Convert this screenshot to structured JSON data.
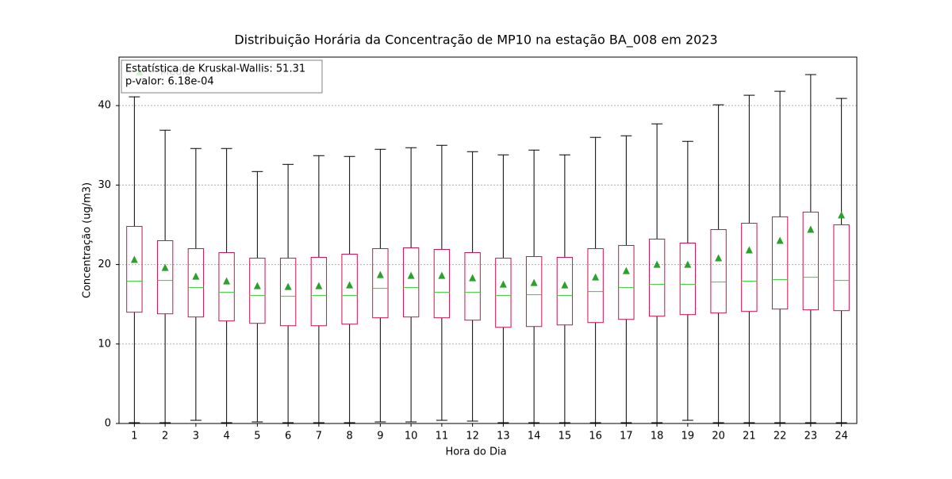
{
  "chart_data": {
    "type": "boxplot",
    "title": "Distribuição Horária da Concentração de MP10 na estação BA_008 em 2023",
    "xlabel": "Hora do Dia",
    "ylabel": "Concentração (ug/m3)",
    "categories": [
      "1",
      "2",
      "3",
      "4",
      "5",
      "6",
      "7",
      "8",
      "9",
      "10",
      "11",
      "12",
      "13",
      "14",
      "15",
      "16",
      "17",
      "18",
      "19",
      "20",
      "21",
      "22",
      "23",
      "24"
    ],
    "boxes": [
      {
        "low": 0.1,
        "q1": 14.0,
        "median": 17.9,
        "q3": 24.8,
        "high": 41.1,
        "mean": 20.6
      },
      {
        "low": 0.1,
        "q1": 13.8,
        "median": 18.0,
        "q3": 23.0,
        "high": 36.9,
        "mean": 19.6
      },
      {
        "low": 0.4,
        "q1": 13.4,
        "median": 17.1,
        "q3": 22.0,
        "high": 34.6,
        "mean": 18.5
      },
      {
        "low": 0.1,
        "q1": 12.9,
        "median": 16.5,
        "q3": 21.5,
        "high": 34.6,
        "mean": 17.9
      },
      {
        "low": 0.2,
        "q1": 12.6,
        "median": 16.1,
        "q3": 20.8,
        "high": 31.7,
        "mean": 17.3
      },
      {
        "low": 0.1,
        "q1": 12.3,
        "median": 16.0,
        "q3": 20.8,
        "high": 32.6,
        "mean": 17.2
      },
      {
        "low": 0.1,
        "q1": 12.3,
        "median": 16.1,
        "q3": 20.9,
        "high": 33.7,
        "mean": 17.3
      },
      {
        "low": 0.1,
        "q1": 12.5,
        "median": 16.1,
        "q3": 21.3,
        "high": 33.6,
        "mean": 17.4
      },
      {
        "low": 0.2,
        "q1": 13.3,
        "median": 17.0,
        "q3": 22.0,
        "high": 34.5,
        "mean": 18.7
      },
      {
        "low": 0.2,
        "q1": 13.4,
        "median": 17.1,
        "q3": 22.1,
        "high": 34.7,
        "mean": 18.6
      },
      {
        "low": 0.4,
        "q1": 13.3,
        "median": 16.5,
        "q3": 21.9,
        "high": 35.0,
        "mean": 18.6
      },
      {
        "low": 0.3,
        "q1": 13.0,
        "median": 16.5,
        "q3": 21.5,
        "high": 34.2,
        "mean": 18.3
      },
      {
        "low": 0.1,
        "q1": 12.1,
        "median": 16.1,
        "q3": 20.8,
        "high": 33.8,
        "mean": 17.5
      },
      {
        "low": 0.1,
        "q1": 12.2,
        "median": 16.2,
        "q3": 21.0,
        "high": 34.4,
        "mean": 17.7
      },
      {
        "low": 0.1,
        "q1": 12.4,
        "median": 16.1,
        "q3": 20.9,
        "high": 33.8,
        "mean": 17.4
      },
      {
        "low": 0.1,
        "q1": 12.7,
        "median": 16.6,
        "q3": 22.0,
        "high": 36.0,
        "mean": 18.4
      },
      {
        "low": 0.1,
        "q1": 13.1,
        "median": 17.1,
        "q3": 22.4,
        "high": 36.2,
        "mean": 19.2
      },
      {
        "low": 0.1,
        "q1": 13.5,
        "median": 17.5,
        "q3": 23.2,
        "high": 37.7,
        "mean": 20.0
      },
      {
        "low": 0.4,
        "q1": 13.7,
        "median": 17.5,
        "q3": 22.7,
        "high": 35.5,
        "mean": 20.0
      },
      {
        "low": 0.1,
        "q1": 13.9,
        "median": 17.8,
        "q3": 24.4,
        "high": 40.1,
        "mean": 20.8
      },
      {
        "low": 0.1,
        "q1": 14.1,
        "median": 17.9,
        "q3": 25.2,
        "high": 41.3,
        "mean": 21.8
      },
      {
        "low": 0.1,
        "q1": 14.4,
        "median": 18.1,
        "q3": 26.0,
        "high": 41.8,
        "mean": 23.0
      },
      {
        "low": 0.1,
        "q1": 14.3,
        "median": 18.4,
        "q3": 26.6,
        "high": 43.9,
        "mean": 24.4
      },
      {
        "low": 0.1,
        "q1": 14.2,
        "median": 18.0,
        "q3": 25.0,
        "high": 40.9,
        "mean": 26.2
      }
    ],
    "box_color": "#d0104c",
    "median_color": "#32cd32",
    "whisker_color": "#000000",
    "mean_color": "#2ca02c",
    "legend": {
      "label": "Média",
      "position": "upper left"
    },
    "annotations": [
      "Estatística de Kruskal-Wallis: 51.31",
      "p-valor: 6.18e-04"
    ],
    "ylim": [
      0,
      46.1
    ],
    "yticks": [
      0,
      10,
      20,
      30,
      40
    ],
    "grid": true
  }
}
